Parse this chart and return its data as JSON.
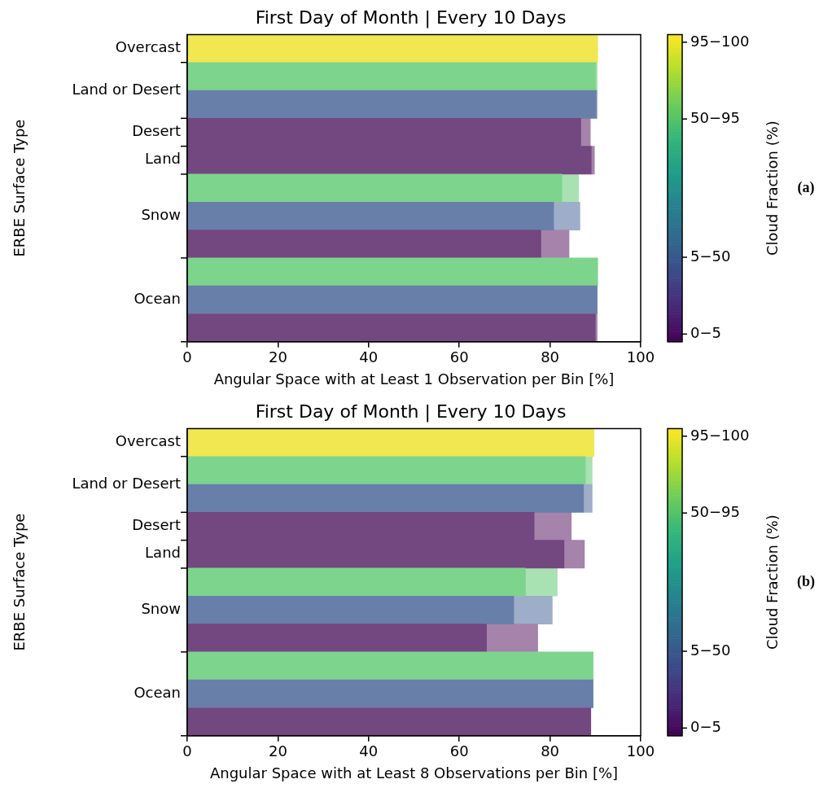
{
  "chart_data": [
    {
      "type": "bar",
      "orientation": "horizontal",
      "stacked": true,
      "title": "First Day of Month | Every 10 Days",
      "xlabel": "Angular Space with at Least 1 Observation per Bin [%]",
      "ylabel": "ERBE Surface Type",
      "clabel": "Cloud Fraction (%)",
      "clim": [
        0,
        100
      ],
      "cticks": [
        {
          "value": 2.5,
          "label": "0−5"
        },
        {
          "value": 27.5,
          "label": "5−50"
        },
        {
          "value": 72.5,
          "label": "50−95"
        },
        {
          "value": 97.5,
          "label": "95−100"
        }
      ],
      "categories": [
        "Overcast",
        null,
        "Land or Desert",
        "Desert",
        "Land",
        null,
        "Snow",
        null,
        null,
        "Ocean",
        null
      ],
      "xlim": [
        0,
        100
      ],
      "xticks": [
        0,
        20,
        40,
        60,
        80,
        100
      ],
      "series": [
        {
          "values": [
            90.5,
            90.1,
            90.2,
            86.8,
            89.1,
            82.6,
            80.8,
            78.0,
            90.5,
            90.4,
            90.0
          ],
          "colors": [
            "#f1e751",
            "#7dd48d",
            "#687fa9",
            "#734780",
            "#734780",
            "#7dd48d",
            "#687fa9",
            "#734780",
            "#7dd48d",
            "#687fa9",
            "#734780"
          ]
        },
        {
          "values": [
            0,
            0.3,
            0.2,
            2.1,
            0.7,
            3.7,
            5.8,
            6.2,
            0,
            0,
            0.4
          ],
          "colors": [
            "#f6efa0",
            "#a8e2b3",
            "#9eadc8",
            "#a583ab",
            "#a583ab",
            "#a8e2b3",
            "#9eadc8",
            "#a583ab",
            "#a8e2b3",
            "#9eadc8",
            "#a583ab"
          ]
        }
      ],
      "annotations": [
        "(a)"
      ]
    },
    {
      "type": "bar",
      "orientation": "horizontal",
      "stacked": true,
      "title": "First Day of Month | Every 10 Days",
      "xlabel": "Angular Space with at Least 8 Observations per Bin [%]",
      "ylabel": "ERBE Surface Type",
      "clabel": "Cloud Fraction (%)",
      "clim": [
        0,
        100
      ],
      "cticks": [
        {
          "value": 2.5,
          "label": "0−5"
        },
        {
          "value": 27.5,
          "label": "5−50"
        },
        {
          "value": 72.5,
          "label": "50−95"
        },
        {
          "value": 97.5,
          "label": "95−100"
        }
      ],
      "categories": [
        "Overcast",
        null,
        "Land or Desert",
        "Desert",
        "Land",
        null,
        "Snow",
        null,
        null,
        "Ocean",
        null
      ],
      "xlim": [
        0,
        100
      ],
      "xticks": [
        0,
        20,
        40,
        60,
        80,
        100
      ],
      "series": [
        {
          "values": [
            89.7,
            87.8,
            87.4,
            76.5,
            83.1,
            74.6,
            72.0,
            66.0,
            89.5,
            89.5,
            89.0
          ],
          "colors": [
            "#f1e751",
            "#7dd48d",
            "#687fa9",
            "#734780",
            "#734780",
            "#7dd48d",
            "#687fa9",
            "#734780",
            "#7dd48d",
            "#687fa9",
            "#734780"
          ]
        },
        {
          "values": [
            0,
            1.5,
            1.9,
            8.2,
            4.5,
            7.0,
            8.5,
            11.3,
            0,
            0,
            0
          ],
          "colors": [
            "#f6efa0",
            "#a8e2b3",
            "#9eadc8",
            "#a583ab",
            "#a583ab",
            "#a8e2b3",
            "#9eadc8",
            "#a583ab",
            "#a8e2b3",
            "#9eadc8",
            "#a583ab"
          ]
        }
      ],
      "annotations": [
        "(b)"
      ]
    }
  ]
}
